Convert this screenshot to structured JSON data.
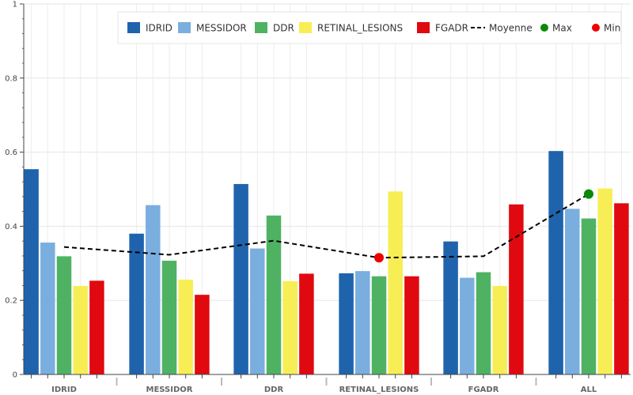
{
  "chart_data": {
    "type": "bar",
    "categories": [
      "IDRID",
      "MESSIDOR",
      "DDR",
      "RETINAL_LESIONS",
      "FGADR",
      "ALL"
    ],
    "series": [
      {
        "name": "IDRID",
        "color": "#1f63ad",
        "values": [
          0.554,
          0.38,
          0.514,
          0.273,
          0.359,
          0.603
        ]
      },
      {
        "name": "MESSIDOR",
        "color": "#7aaede",
        "values": [
          0.356,
          0.457,
          0.34,
          0.279,
          0.261,
          0.447
        ]
      },
      {
        "name": "DDR",
        "color": "#4fb263",
        "values": [
          0.319,
          0.307,
          0.429,
          0.265,
          0.276,
          0.421
        ]
      },
      {
        "name": "RETINAL_LESIONS",
        "color": "#f7ee55",
        "values": [
          0.239,
          0.256,
          0.252,
          0.494,
          0.239,
          0.502
        ]
      },
      {
        "name": "FGADR",
        "color": "#e0090f",
        "values": [
          0.253,
          0.215,
          0.272,
          0.265,
          0.459,
          0.462
        ]
      }
    ],
    "lines": [
      {
        "name": "Moyenne",
        "color": "#000000",
        "style": "dashed",
        "values": [
          0.344,
          0.323,
          0.361,
          0.315,
          0.319,
          0.487
        ]
      }
    ],
    "markers": [
      {
        "name": "Max",
        "color": "#0a8a0a",
        "category": "ALL",
        "value": 0.487
      },
      {
        "name": "Min",
        "color": "#ee0000",
        "category": "RETINAL_LESIONS",
        "value": 0.315
      }
    ],
    "yticks": [
      "0",
      "0.2",
      "0.4",
      "0.6",
      "0.8",
      "1"
    ],
    "ylim": [
      0,
      1
    ],
    "grid": true,
    "legend_position": "top-right",
    "title": "",
    "xlabel": "",
    "ylabel": ""
  }
}
